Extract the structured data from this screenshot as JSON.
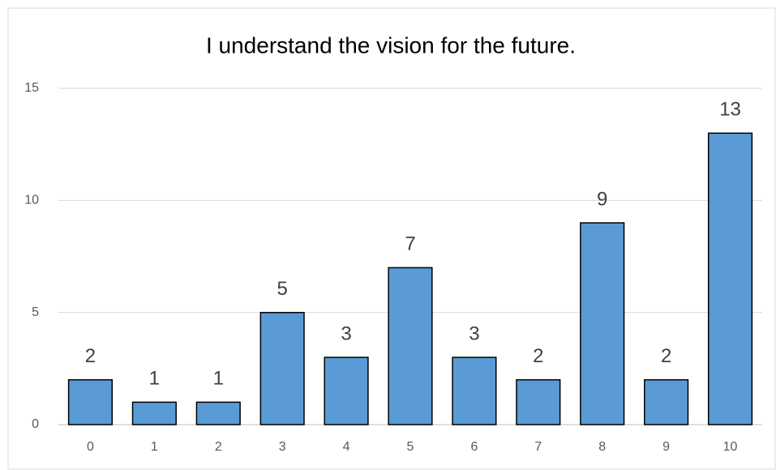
{
  "chart_data": {
    "type": "bar",
    "title": "I understand the vision for the future.",
    "categories": [
      "0",
      "1",
      "2",
      "3",
      "4",
      "5",
      "6",
      "7",
      "8",
      "9",
      "10"
    ],
    "values": [
      2,
      1,
      1,
      5,
      3,
      7,
      3,
      2,
      9,
      2,
      13
    ],
    "color": "#5b9bd5",
    "ylim": [
      0,
      15
    ],
    "yticks": [
      0,
      5,
      10,
      15
    ],
    "grid": true
  }
}
